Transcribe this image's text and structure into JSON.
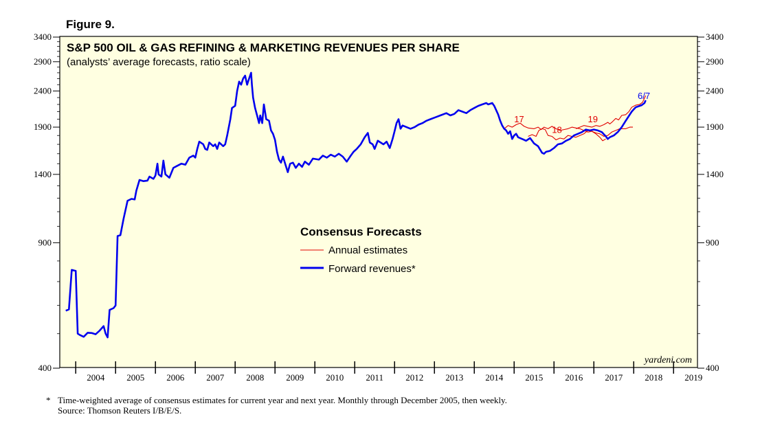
{
  "figure_label": "Figure 9.",
  "footnote": {
    "marker": "*",
    "line1": "Time-weighted average of consensus estimates for current year and next year. Monthly through December 2005, then weekly.",
    "line2": "Source: Thomson Reuters I/B/E/S."
  },
  "watermark": "yardeni.com",
  "colors": {
    "forward": "#0000ee",
    "annual": "#e00000",
    "plot_bg": "#ffffe1",
    "axis": "#000000"
  },
  "chart_data": {
    "type": "line",
    "title": "S&P 500 OIL & GAS REFINING & MARKETING REVENUES PER SHARE",
    "subtitle": "(analysts’ average forecasts, ratio scale)",
    "yscale": "log",
    "ylim": [
      400,
      3400
    ],
    "xlim": [
      2003.6,
      2019.6
    ],
    "y_ticks_left": [
      400,
      900,
      1400,
      1900,
      2400,
      2900,
      3400
    ],
    "y_ticks_right": [
      400,
      900,
      1400,
      1900,
      2400,
      2900,
      3400
    ],
    "x_tick_labels": [
      "2004",
      "2005",
      "2006",
      "2007",
      "2008",
      "2009",
      "2010",
      "2011",
      "2012",
      "2013",
      "2014",
      "2015",
      "2016",
      "2017",
      "2018",
      "2019"
    ],
    "legend": {
      "title": "Consensus Forecasts",
      "entries": [
        {
          "label": "Annual estimates",
          "series": "annual"
        },
        {
          "label": "Forward revenues*",
          "series": "forward"
        }
      ]
    },
    "last_date_label": "6/7",
    "annual_year_labels": [
      {
        "label": "17",
        "x": 2015.0,
        "y": 1960
      },
      {
        "label": "18",
        "x": 2015.95,
        "y": 1830
      },
      {
        "label": "19",
        "x": 2016.85,
        "y": 1960
      }
    ],
    "series": [
      {
        "name": "Forward revenues*",
        "key": "forward",
        "points": [
          [
            2003.75,
            580
          ],
          [
            2003.83,
            585
          ],
          [
            2003.9,
            755
          ],
          [
            2004.0,
            750
          ],
          [
            2004.05,
            500
          ],
          [
            2004.1,
            496
          ],
          [
            2004.2,
            490
          ],
          [
            2004.3,
            503
          ],
          [
            2004.4,
            502
          ],
          [
            2004.5,
            498
          ],
          [
            2004.6,
            510
          ],
          [
            2004.7,
            525
          ],
          [
            2004.75,
            500
          ],
          [
            2004.8,
            488
          ],
          [
            2004.85,
            583
          ],
          [
            2004.95,
            590
          ],
          [
            2005.0,
            600
          ],
          [
            2005.05,
            940
          ],
          [
            2005.12,
            945
          ],
          [
            2005.2,
            1050
          ],
          [
            2005.3,
            1180
          ],
          [
            2005.4,
            1195
          ],
          [
            2005.48,
            1190
          ],
          [
            2005.52,
            1260
          ],
          [
            2005.6,
            1350
          ],
          [
            2005.7,
            1340
          ],
          [
            2005.8,
            1345
          ],
          [
            2005.85,
            1380
          ],
          [
            2005.95,
            1360
          ],
          [
            2006.0,
            1390
          ],
          [
            2006.05,
            1500
          ],
          [
            2006.08,
            1400
          ],
          [
            2006.15,
            1380
          ],
          [
            2006.2,
            1530
          ],
          [
            2006.25,
            1400
          ],
          [
            2006.35,
            1370
          ],
          [
            2006.45,
            1460
          ],
          [
            2006.55,
            1480
          ],
          [
            2006.65,
            1500
          ],
          [
            2006.75,
            1490
          ],
          [
            2006.85,
            1560
          ],
          [
            2006.95,
            1580
          ],
          [
            2007.0,
            1560
          ],
          [
            2007.05,
            1650
          ],
          [
            2007.1,
            1730
          ],
          [
            2007.2,
            1700
          ],
          [
            2007.25,
            1650
          ],
          [
            2007.3,
            1640
          ],
          [
            2007.35,
            1720
          ],
          [
            2007.45,
            1680
          ],
          [
            2007.5,
            1700
          ],
          [
            2007.55,
            1650
          ],
          [
            2007.6,
            1720
          ],
          [
            2007.65,
            1700
          ],
          [
            2007.7,
            1680
          ],
          [
            2007.75,
            1700
          ],
          [
            2007.8,
            1800
          ],
          [
            2007.88,
            2000
          ],
          [
            2007.92,
            2150
          ],
          [
            2008.0,
            2180
          ],
          [
            2008.05,
            2400
          ],
          [
            2008.1,
            2550
          ],
          [
            2008.15,
            2500
          ],
          [
            2008.2,
            2600
          ],
          [
            2008.25,
            2650
          ],
          [
            2008.3,
            2500
          ],
          [
            2008.35,
            2600
          ],
          [
            2008.4,
            2700
          ],
          [
            2008.42,
            2500
          ],
          [
            2008.45,
            2300
          ],
          [
            2008.5,
            2150
          ],
          [
            2008.55,
            2050
          ],
          [
            2008.6,
            1950
          ],
          [
            2008.63,
            2050
          ],
          [
            2008.68,
            1950
          ],
          [
            2008.72,
            2200
          ],
          [
            2008.78,
            2000
          ],
          [
            2008.85,
            1980
          ],
          [
            2008.9,
            1860
          ],
          [
            2008.95,
            1820
          ],
          [
            2009.0,
            1750
          ],
          [
            2009.05,
            1620
          ],
          [
            2009.1,
            1540
          ],
          [
            2009.15,
            1510
          ],
          [
            2009.2,
            1570
          ],
          [
            2009.28,
            1470
          ],
          [
            2009.32,
            1420
          ],
          [
            2009.38,
            1500
          ],
          [
            2009.45,
            1510
          ],
          [
            2009.52,
            1460
          ],
          [
            2009.6,
            1500
          ],
          [
            2009.68,
            1470
          ],
          [
            2009.75,
            1520
          ],
          [
            2009.85,
            1490
          ],
          [
            2009.95,
            1550
          ],
          [
            2010.1,
            1540
          ],
          [
            2010.2,
            1580
          ],
          [
            2010.3,
            1560
          ],
          [
            2010.4,
            1590
          ],
          [
            2010.5,
            1570
          ],
          [
            2010.6,
            1600
          ],
          [
            2010.7,
            1570
          ],
          [
            2010.8,
            1520
          ],
          [
            2010.9,
            1580
          ],
          [
            2010.97,
            1620
          ],
          [
            2011.05,
            1650
          ],
          [
            2011.15,
            1700
          ],
          [
            2011.25,
            1780
          ],
          [
            2011.33,
            1830
          ],
          [
            2011.38,
            1720
          ],
          [
            2011.45,
            1700
          ],
          [
            2011.5,
            1650
          ],
          [
            2011.58,
            1740
          ],
          [
            2011.65,
            1720
          ],
          [
            2011.72,
            1700
          ],
          [
            2011.8,
            1730
          ],
          [
            2011.88,
            1660
          ],
          [
            2011.95,
            1760
          ],
          [
            2012.0,
            1850
          ],
          [
            2012.05,
            1950
          ],
          [
            2012.1,
            2000
          ],
          [
            2012.15,
            1880
          ],
          [
            2012.2,
            1920
          ],
          [
            2012.3,
            1900
          ],
          [
            2012.4,
            1880
          ],
          [
            2012.5,
            1900
          ],
          [
            2012.6,
            1930
          ],
          [
            2012.7,
            1950
          ],
          [
            2012.8,
            1980
          ],
          [
            2012.9,
            2000
          ],
          [
            2013.0,
            2020
          ],
          [
            2013.15,
            2050
          ],
          [
            2013.3,
            2080
          ],
          [
            2013.4,
            2050
          ],
          [
            2013.5,
            2070
          ],
          [
            2013.6,
            2120
          ],
          [
            2013.7,
            2100
          ],
          [
            2013.8,
            2080
          ],
          [
            2013.9,
            2120
          ],
          [
            2014.0,
            2150
          ],
          [
            2014.1,
            2180
          ],
          [
            2014.2,
            2200
          ],
          [
            2014.3,
            2220
          ],
          [
            2014.35,
            2200
          ],
          [
            2014.45,
            2220
          ],
          [
            2014.5,
            2180
          ],
          [
            2014.55,
            2120
          ],
          [
            2014.6,
            2060
          ],
          [
            2014.65,
            1980
          ],
          [
            2014.7,
            1920
          ],
          [
            2014.75,
            1880
          ],
          [
            2014.8,
            1860
          ],
          [
            2014.85,
            1820
          ],
          [
            2014.9,
            1850
          ],
          [
            2014.95,
            1760
          ],
          [
            2015.0,
            1800
          ],
          [
            2015.05,
            1820
          ],
          [
            2015.1,
            1780
          ],
          [
            2015.2,
            1760
          ],
          [
            2015.3,
            1740
          ],
          [
            2015.4,
            1770
          ],
          [
            2015.5,
            1710
          ],
          [
            2015.6,
            1680
          ],
          [
            2015.7,
            1610
          ],
          [
            2015.75,
            1600
          ],
          [
            2015.8,
            1620
          ],
          [
            2015.9,
            1630
          ],
          [
            2016.0,
            1660
          ],
          [
            2016.1,
            1700
          ],
          [
            2016.2,
            1710
          ],
          [
            2016.3,
            1740
          ],
          [
            2016.4,
            1760
          ],
          [
            2016.5,
            1800
          ],
          [
            2016.6,
            1820
          ],
          [
            2016.7,
            1840
          ],
          [
            2016.8,
            1870
          ],
          [
            2016.9,
            1860
          ],
          [
            2017.0,
            1870
          ],
          [
            2017.1,
            1860
          ],
          [
            2017.2,
            1840
          ],
          [
            2017.3,
            1790
          ],
          [
            2017.35,
            1760
          ],
          [
            2017.4,
            1780
          ],
          [
            2017.5,
            1800
          ],
          [
            2017.6,
            1840
          ],
          [
            2017.7,
            1900
          ],
          [
            2017.8,
            1980
          ],
          [
            2017.9,
            2060
          ],
          [
            2017.95,
            2100
          ],
          [
            2018.0,
            2130
          ],
          [
            2018.05,
            2160
          ],
          [
            2018.1,
            2170
          ],
          [
            2018.2,
            2190
          ],
          [
            2018.27,
            2220
          ],
          [
            2018.3,
            2260
          ]
        ]
      },
      {
        "name": "Annual estimates 2017",
        "key": "annual",
        "points": [
          [
            2014.75,
            1880
          ],
          [
            2014.85,
            1920
          ],
          [
            2014.95,
            1900
          ],
          [
            2015.05,
            1930
          ],
          [
            2015.15,
            1950
          ],
          [
            2015.25,
            1910
          ],
          [
            2015.35,
            1890
          ],
          [
            2015.5,
            1880
          ],
          [
            2015.6,
            1900
          ],
          [
            2015.68,
            1870
          ],
          [
            2015.75,
            1900
          ],
          [
            2015.85,
            1880
          ],
          [
            2015.95,
            1910
          ],
          [
            2016.05,
            1880
          ],
          [
            2016.15,
            1860
          ],
          [
            2016.25,
            1870
          ],
          [
            2016.35,
            1880
          ],
          [
            2016.45,
            1900
          ],
          [
            2016.55,
            1890
          ],
          [
            2016.65,
            1880
          ],
          [
            2016.75,
            1860
          ],
          [
            2016.85,
            1840
          ],
          [
            2016.95,
            1850
          ],
          [
            2017.05,
            1820
          ],
          [
            2017.15,
            1780
          ],
          [
            2017.22,
            1740
          ],
          [
            2017.3,
            1760
          ]
        ]
      },
      {
        "name": "Annual estimates 2018",
        "key": "annual",
        "points": [
          [
            2015.35,
            1790
          ],
          [
            2015.45,
            1810
          ],
          [
            2015.55,
            1790
          ],
          [
            2015.62,
            1860
          ],
          [
            2015.7,
            1880
          ],
          [
            2015.78,
            1870
          ],
          [
            2015.85,
            1800
          ],
          [
            2015.95,
            1790
          ],
          [
            2016.05,
            1750
          ],
          [
            2016.15,
            1770
          ],
          [
            2016.25,
            1760
          ],
          [
            2016.35,
            1800
          ],
          [
            2016.45,
            1790
          ],
          [
            2016.55,
            1780
          ],
          [
            2016.65,
            1800
          ],
          [
            2016.75,
            1820
          ],
          [
            2016.85,
            1860
          ],
          [
            2016.95,
            1850
          ],
          [
            2017.05,
            1830
          ],
          [
            2017.15,
            1820
          ],
          [
            2017.25,
            1790
          ],
          [
            2017.35,
            1800
          ],
          [
            2017.45,
            1840
          ],
          [
            2017.55,
            1860
          ],
          [
            2017.65,
            1880
          ],
          [
            2017.8,
            1880
          ],
          [
            2017.9,
            1900
          ],
          [
            2017.98,
            1900
          ]
        ]
      },
      {
        "name": "Annual estimates 2019",
        "key": "annual",
        "points": [
          [
            2016.55,
            1880
          ],
          [
            2016.65,
            1900
          ],
          [
            2016.75,
            1920
          ],
          [
            2016.85,
            1910
          ],
          [
            2016.95,
            1900
          ],
          [
            2017.05,
            1920
          ],
          [
            2017.15,
            1910
          ],
          [
            2017.25,
            1930
          ],
          [
            2017.35,
            1960
          ],
          [
            2017.4,
            1940
          ],
          [
            2017.45,
            1960
          ],
          [
            2017.55,
            2010
          ],
          [
            2017.62,
            1990
          ],
          [
            2017.7,
            2050
          ],
          [
            2017.8,
            2060
          ],
          [
            2017.88,
            2100
          ],
          [
            2017.95,
            2160
          ],
          [
            2018.05,
            2190
          ],
          [
            2018.15,
            2200
          ],
          [
            2018.22,
            2230
          ],
          [
            2018.3,
            2330
          ]
        ]
      }
    ]
  }
}
